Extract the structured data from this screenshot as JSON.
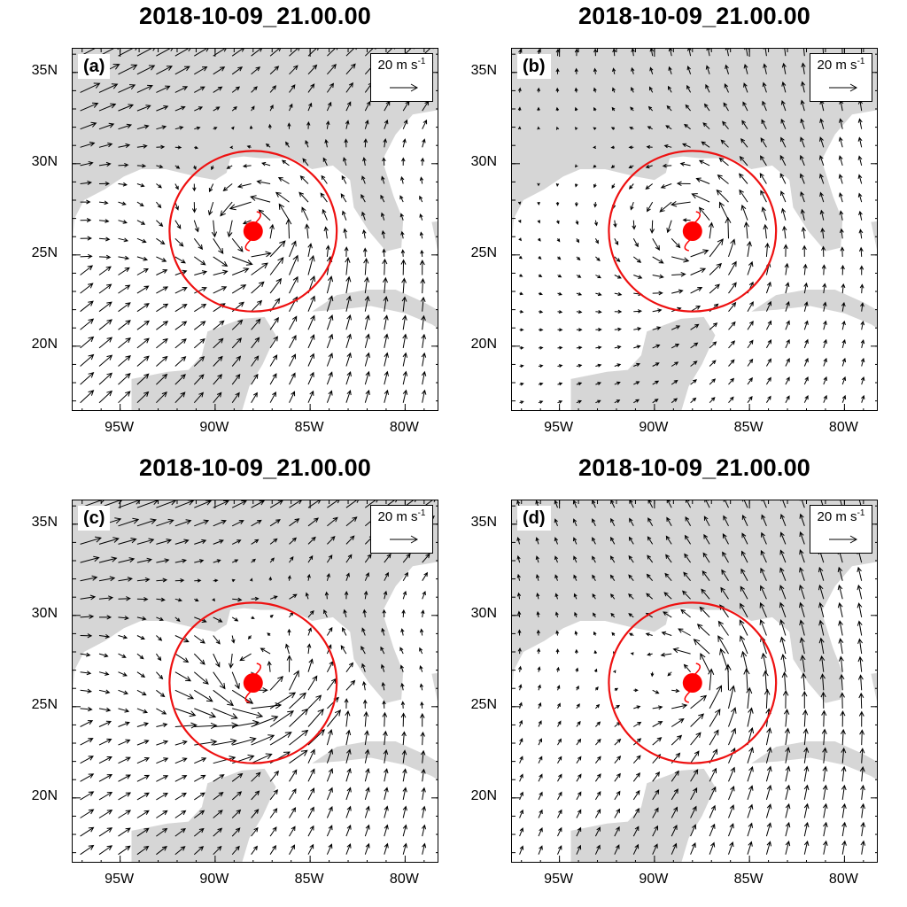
{
  "figure": {
    "panels": [
      {
        "id": "a",
        "label": "(a)",
        "title": "2018-10-09_21.00.00",
        "mode": "cyclone"
      },
      {
        "id": "b",
        "label": "(b)",
        "title": "2018-10-09_21.00.00",
        "mode": "symmetric"
      },
      {
        "id": "c",
        "label": "(c)",
        "title": "2018-10-09_21.00.00",
        "mode": "westerly"
      },
      {
        "id": "d",
        "label": "(d)",
        "title": "2018-10-09_21.00.00",
        "mode": "southerly"
      }
    ],
    "reference_vector": {
      "magnitude": "20",
      "unit": "m s",
      "exponent": "-1"
    },
    "lat_ticks": [
      "35N",
      "30N",
      "25N",
      "20N"
    ],
    "lon_ticks": [
      "95W",
      "90W",
      "85W",
      "80W"
    ],
    "extent": {
      "lon_min": -97.5,
      "lon_max": -78.2,
      "lat_min": 16.4,
      "lat_max": 36.3
    },
    "storm_center": {
      "lon": -88.0,
      "lat": 26.3
    },
    "circle_radius_deg": 4.4,
    "colors": {
      "land": "#d6d6d6",
      "ocean": "#ffffff",
      "storm": "#ff0000",
      "circle": "#ee1111",
      "vector": "#000000"
    }
  }
}
